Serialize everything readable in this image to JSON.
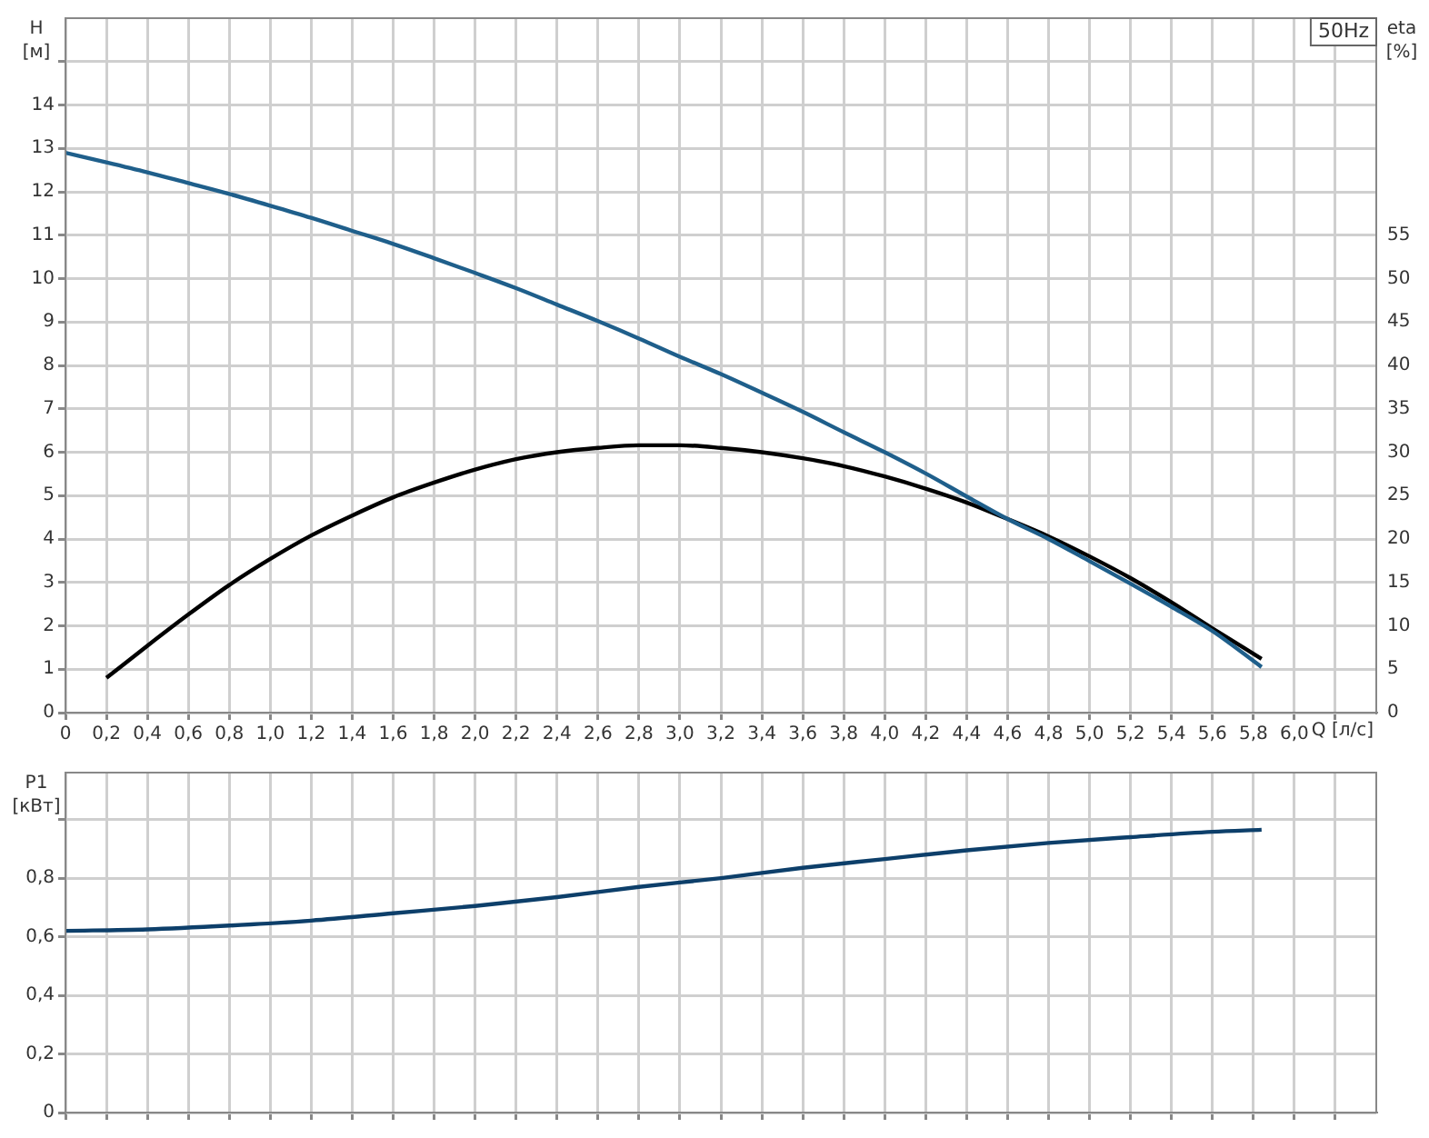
{
  "chart_data": [
    {
      "type": "line",
      "xlabel": "Q [л/с]",
      "ylabel": "H [м]",
      "y2label": "eta [%]",
      "annotations": [
        "50Hz"
      ],
      "grid": true,
      "xlim": [
        0,
        6.4
      ],
      "xticks": [
        0,
        {
          "value": 0.2,
          "label": "0,2"
        },
        {
          "value": 0.4,
          "label": "0,4"
        },
        {
          "value": 0.6,
          "label": "0,6"
        },
        {
          "value": 0.8,
          "label": "0,8"
        },
        {
          "value": 1.0,
          "label": "1,0"
        },
        {
          "value": 1.2,
          "label": "1,2"
        },
        {
          "value": 1.4,
          "label": "1,4"
        },
        {
          "value": 1.6,
          "label": "1,6"
        },
        {
          "value": 1.8,
          "label": "1,8"
        },
        {
          "value": 2.0,
          "label": "2,0"
        },
        {
          "value": 2.2,
          "label": "2,2"
        },
        {
          "value": 2.4,
          "label": "2,4"
        },
        {
          "value": 2.6,
          "label": "2,6"
        },
        {
          "value": 2.8,
          "label": "2,8"
        },
        {
          "value": 3.0,
          "label": "3,0"
        },
        {
          "value": 3.2,
          "label": "3,2"
        },
        {
          "value": 3.4,
          "label": "3,4"
        },
        {
          "value": 3.6,
          "label": "3,6"
        },
        {
          "value": 3.8,
          "label": "3,8"
        },
        {
          "value": 4.0,
          "label": "4,0"
        },
        {
          "value": 4.2,
          "label": "4,2"
        },
        {
          "value": 4.4,
          "label": "4,4"
        },
        {
          "value": 4.6,
          "label": "4,6"
        },
        {
          "value": 4.8,
          "label": "4,8"
        },
        {
          "value": 5.0,
          "label": "5,0"
        },
        {
          "value": 5.2,
          "label": "5,2"
        },
        {
          "value": 5.4,
          "label": "5,4"
        },
        {
          "value": 5.6,
          "label": "5,6"
        },
        {
          "value": 5.8,
          "label": "5,8"
        },
        {
          "value": 6.0,
          "label": "6,0"
        },
        {
          "value": 6.2,
          "label": null
        }
      ],
      "ylim": [
        0,
        16
      ],
      "yticks": [
        0,
        1,
        2,
        3,
        4,
        5,
        6,
        7,
        8,
        9,
        10,
        11,
        12,
        13,
        14,
        {
          "value": 15,
          "label": null
        }
      ],
      "y2lim": [
        0,
        80
      ],
      "y2ticks": [
        0,
        5,
        10,
        15,
        20,
        25,
        30,
        35,
        40,
        45,
        50,
        55
      ],
      "series": [
        {
          "color": "#1f5f8b",
          "x": [
            0,
            0.2,
            0.4,
            0.6,
            0.8,
            1.0,
            1.2,
            1.4,
            1.6,
            1.8,
            2.0,
            2.2,
            2.4,
            2.6,
            2.8,
            3.0,
            3.2,
            3.4,
            3.6,
            3.8,
            4.0,
            4.2,
            4.4,
            4.6,
            4.8,
            5.0,
            5.2,
            5.4,
            5.6,
            5.84
          ],
          "values": [
            12.9,
            12.68,
            12.45,
            12.2,
            11.95,
            11.68,
            11.4,
            11.1,
            10.8,
            10.47,
            10.13,
            9.78,
            9.4,
            9.02,
            8.62,
            8.2,
            7.8,
            7.37,
            6.93,
            6.46,
            6.0,
            5.51,
            4.98,
            4.46,
            4.0,
            3.49,
            2.97,
            2.44,
            1.88,
            1.05
          ]
        },
        {
          "color": "#000000",
          "axis": "y2",
          "x": [
            0.2,
            0.4,
            0.6,
            0.8,
            1.0,
            1.2,
            1.4,
            1.6,
            1.8,
            2.0,
            2.2,
            2.4,
            2.6,
            2.8,
            3.0,
            3.2,
            3.4,
            3.6,
            3.8,
            4.0,
            4.2,
            4.4,
            4.6,
            4.8,
            5.0,
            5.2,
            5.4,
            5.6,
            5.84
          ],
          "values": [
            4.0,
            7.7,
            11.3,
            14.7,
            17.7,
            20.4,
            22.7,
            24.8,
            26.5,
            28.0,
            29.2,
            30.0,
            30.5,
            30.8,
            30.8,
            30.5,
            30.0,
            29.3,
            28.4,
            27.2,
            25.8,
            24.2,
            22.3,
            20.3,
            18.0,
            15.5,
            12.7,
            9.7,
            6.2
          ]
        }
      ]
    },
    {
      "type": "line",
      "ylabel": "P1 [кВт]",
      "grid": true,
      "tick_labels": "y",
      "xlim": [
        0,
        6.4
      ],
      "xticks": [
        0,
        0.2,
        0.4,
        0.6,
        0.8,
        1.0,
        1.2,
        1.4,
        1.6,
        1.8,
        2.0,
        2.2,
        2.4,
        2.6,
        2.8,
        3.0,
        3.2,
        3.4,
        3.6,
        3.8,
        4.0,
        4.2,
        4.4,
        4.6,
        4.8,
        5.0,
        5.2,
        5.4,
        5.6,
        5.8,
        6.0,
        6.2
      ],
      "ylim": [
        0,
        1.16
      ],
      "yticks": [
        0,
        {
          "value": 0.2,
          "label": "0,2"
        },
        {
          "value": 0.4,
          "label": "0,4"
        },
        {
          "value": 0.6,
          "label": "0,6"
        },
        {
          "value": 0.8,
          "label": "0,8"
        },
        {
          "value": 1.0,
          "label": null
        }
      ],
      "series": [
        {
          "color": "#0d3f6a",
          "x": [
            0,
            0.4,
            0.8,
            1.2,
            1.6,
            2.0,
            2.4,
            2.8,
            3.2,
            3.6,
            4.0,
            4.4,
            4.8,
            5.2,
            5.6,
            5.84
          ],
          "values": [
            0.62,
            0.625,
            0.638,
            0.655,
            0.68,
            0.705,
            0.735,
            0.77,
            0.8,
            0.835,
            0.865,
            0.895,
            0.92,
            0.94,
            0.958,
            0.965
          ]
        }
      ]
    }
  ]
}
